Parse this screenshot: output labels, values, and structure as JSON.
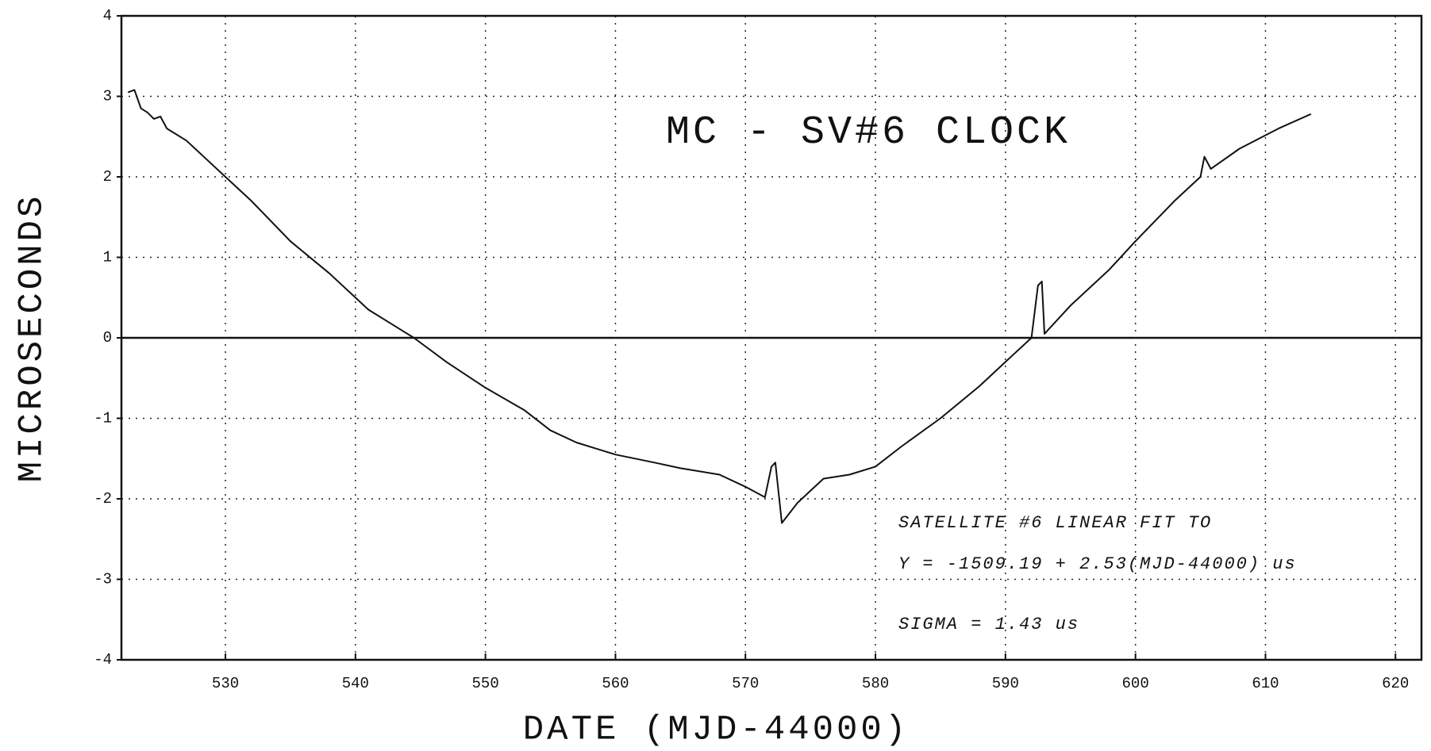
{
  "chart_data": {
    "type": "line",
    "title": "MC - SV#6 CLOCK",
    "x_label": "DATE (MJD-44000)",
    "y_label": "MICROSECONDS",
    "annotations": [
      "SATELLITE #6 LINEAR FIT TO",
      "Y = -1509.19 + 2.53(MJD-44000) us",
      "SIGMA = 1.43 us"
    ],
    "xlim": [
      522,
      622
    ],
    "ylim": [
      -4,
      4
    ],
    "xticks": [
      530,
      540,
      550,
      560,
      570,
      580,
      590,
      600,
      610,
      620
    ],
    "yticks": [
      -4,
      -3,
      -2,
      -1,
      0,
      1,
      2,
      3,
      4
    ],
    "grid": true,
    "zero_line": true,
    "color": "#111111",
    "x": [
      522.5,
      523,
      523.5,
      524,
      524.5,
      525,
      525.5,
      527,
      529,
      530,
      532,
      535,
      538,
      541,
      543,
      544.5,
      547,
      550,
      553,
      555,
      557,
      560,
      563,
      565,
      568,
      570,
      571.5,
      572,
      572.3,
      572.8,
      574,
      576,
      578,
      580,
      582,
      585,
      588,
      590,
      592,
      592.5,
      592.8,
      593,
      595,
      598,
      600,
      603,
      605,
      605.3,
      605.8,
      608,
      611,
      613.5
    ],
    "values": [
      3.05,
      3.08,
      2.85,
      2.8,
      2.72,
      2.75,
      2.6,
      2.45,
      2.15,
      2.0,
      1.7,
      1.2,
      0.8,
      0.35,
      0.15,
      0.0,
      -0.3,
      -0.62,
      -0.9,
      -1.15,
      -1.3,
      -1.45,
      -1.55,
      -1.62,
      -1.7,
      -1.85,
      -1.98,
      -1.6,
      -1.55,
      -2.3,
      -2.05,
      -1.75,
      -1.7,
      -1.6,
      -1.35,
      -1.0,
      -0.6,
      -0.3,
      0.0,
      0.65,
      0.7,
      0.05,
      0.4,
      0.85,
      1.2,
      1.7,
      2.0,
      2.25,
      2.1,
      2.35,
      2.6,
      2.78
    ]
  }
}
